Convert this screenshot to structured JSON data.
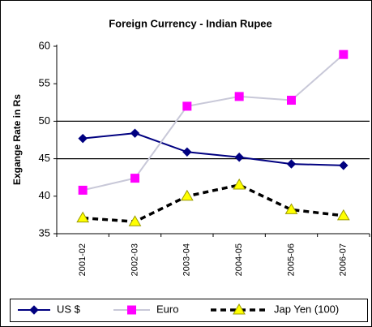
{
  "chart_data": {
    "type": "line",
    "title": "Foreign Currency - Indian Rupee",
    "y_label": "Exgange Rate in Rs",
    "categories": [
      "2001-02",
      "2002-03",
      "2003-04",
      "2004-05",
      "2005-06",
      "2006-07"
    ],
    "series": [
      {
        "name": "US $",
        "color": "#000080",
        "line_color": "#000080",
        "marker": "diamond",
        "dashed": false,
        "values": [
          47.7,
          48.4,
          45.9,
          45.2,
          44.3,
          44.1
        ]
      },
      {
        "name": "Euro",
        "color": "#ff00ff",
        "line_color": "#c8c8d8",
        "marker": "square",
        "dashed": false,
        "values": [
          40.8,
          42.4,
          52.0,
          53.3,
          52.8,
          58.9
        ]
      },
      {
        "name": "Jap Yen (100)",
        "color": "#ffff00",
        "line_color": "#000000",
        "marker": "triangle",
        "dashed": true,
        "values": [
          37.1,
          36.6,
          40.0,
          41.5,
          38.2,
          37.4
        ]
      }
    ],
    "ylim": [
      35,
      60
    ],
    "yticks": [
      35,
      40,
      45,
      50,
      55,
      60
    ],
    "grid_lines": [
      45,
      50
    ],
    "legend": "bottom"
  }
}
